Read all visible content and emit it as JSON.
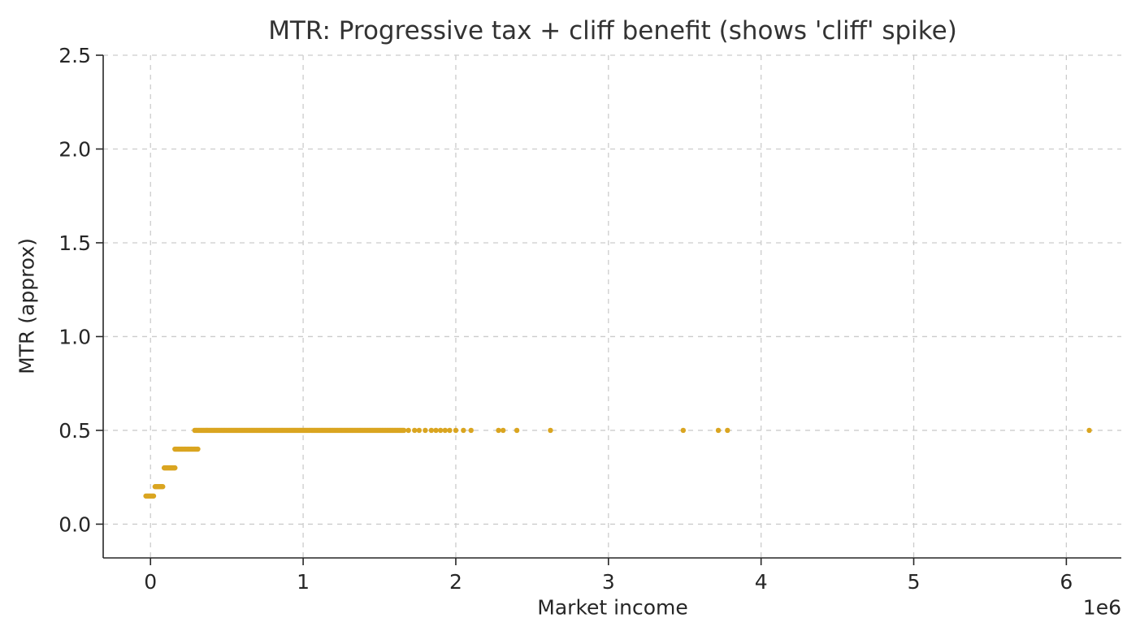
{
  "chart_data": {
    "type": "scatter",
    "title": "MTR: Progressive tax + cliff benefit (shows 'cliff' spike)",
    "xlabel": "Market income",
    "ylabel": "MTR (approx)",
    "x_offset_label": "1e6",
    "x_unit": 1000000,
    "xlim": [
      -0.31,
      6.36
    ],
    "ylim": [
      -0.18,
      2.5
    ],
    "xticks": [
      0,
      1,
      2,
      3,
      4,
      5,
      6
    ],
    "xtick_labels": [
      "0",
      "1",
      "2",
      "3",
      "4",
      "5",
      "6"
    ],
    "yticks": [
      0.0,
      0.5,
      1.0,
      1.5,
      2.0,
      2.5
    ],
    "ytick_labels": [
      "0.0",
      "0.5",
      "1.0",
      "1.5",
      "2.0",
      "2.5"
    ],
    "grid": true,
    "grid_color": "#cccccc",
    "spine_color": "#262626",
    "text_color": "#262626",
    "marker_color": "#DAA520",
    "marker_radius": 3.2,
    "bands": [
      {
        "y": 0.15,
        "x_min": -0.03,
        "x_max": 0.02,
        "count": 6
      },
      {
        "y": 0.2,
        "x_min": 0.03,
        "x_max": 0.08,
        "count": 8
      },
      {
        "y": 0.3,
        "x_min": 0.09,
        "x_max": 0.16,
        "count": 12
      },
      {
        "y": 0.4,
        "x_min": 0.16,
        "x_max": 0.31,
        "count": 22
      },
      {
        "y": 0.5,
        "x_min": 0.29,
        "x_max": 1.66,
        "count": 175
      }
    ],
    "extra_points": {
      "y": 0.5,
      "xs": [
        1.69,
        1.73,
        1.76,
        1.8,
        1.84,
        1.87,
        1.9,
        1.93,
        1.96,
        2.0,
        2.05,
        2.1,
        2.28,
        2.31,
        2.4,
        2.62,
        3.49,
        3.72,
        3.78,
        6.15
      ]
    }
  }
}
